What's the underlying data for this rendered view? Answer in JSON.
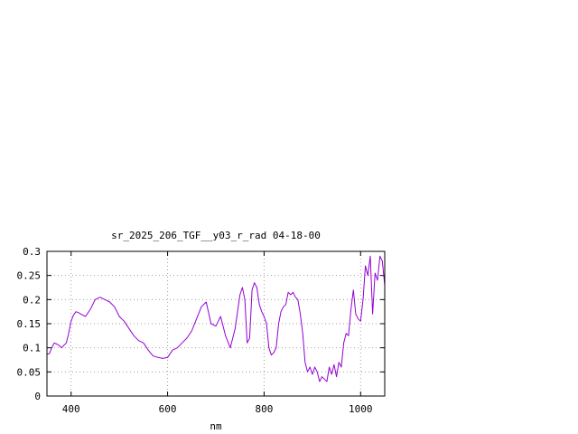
{
  "chart_data": {
    "type": "line",
    "title": "sr_2025_206_TGF__y03_r_rad 04-18-00",
    "xlabel": "nm",
    "ylabel": "",
    "xlim": [
      350,
      1050
    ],
    "ylim": [
      0,
      0.3
    ],
    "x_ticks": [
      400,
      600,
      800,
      1000
    ],
    "y_ticks": [
      0,
      0.05,
      0.1,
      0.15,
      0.2,
      0.25,
      0.3
    ],
    "x_tick_labels": [
      "400",
      "600",
      "800",
      "1000"
    ],
    "y_tick_labels": [
      "0",
      "0.05",
      "0.1",
      "0.15",
      "0.2",
      "0.25",
      "0.3"
    ],
    "grid": true,
    "legend": "none",
    "series": [
      {
        "color": "#9400d3",
        "x": [
          350,
          355,
          360,
          365,
          370,
          375,
          380,
          385,
          390,
          395,
          400,
          405,
          410,
          415,
          420,
          430,
          440,
          450,
          460,
          470,
          480,
          490,
          500,
          510,
          520,
          530,
          540,
          550,
          560,
          570,
          580,
          590,
          600,
          610,
          620,
          630,
          640,
          650,
          660,
          670,
          680,
          690,
          700,
          710,
          720,
          730,
          740,
          745,
          750,
          755,
          760,
          765,
          770,
          775,
          780,
          785,
          790,
          795,
          800,
          805,
          810,
          815,
          820,
          825,
          830,
          835,
          840,
          845,
          850,
          855,
          860,
          865,
          870,
          875,
          880,
          885,
          890,
          895,
          900,
          905,
          910,
          915,
          920,
          925,
          930,
          935,
          940,
          945,
          950,
          955,
          960,
          965,
          970,
          975,
          980,
          985,
          990,
          995,
          1000,
          1005,
          1010,
          1015,
          1020,
          1025,
          1030,
          1035,
          1040,
          1045,
          1050
        ],
        "y": [
          0.087,
          0.088,
          0.1,
          0.11,
          0.108,
          0.105,
          0.1,
          0.105,
          0.11,
          0.13,
          0.155,
          0.168,
          0.175,
          0.173,
          0.17,
          0.165,
          0.18,
          0.2,
          0.205,
          0.2,
          0.195,
          0.185,
          0.165,
          0.155,
          0.14,
          0.125,
          0.115,
          0.11,
          0.095,
          0.083,
          0.08,
          0.078,
          0.08,
          0.095,
          0.1,
          0.11,
          0.12,
          0.135,
          0.16,
          0.185,
          0.195,
          0.15,
          0.145,
          0.165,
          0.125,
          0.1,
          0.14,
          0.175,
          0.21,
          0.225,
          0.2,
          0.11,
          0.12,
          0.22,
          0.235,
          0.225,
          0.19,
          0.175,
          0.165,
          0.15,
          0.1,
          0.085,
          0.09,
          0.1,
          0.15,
          0.175,
          0.185,
          0.19,
          0.215,
          0.21,
          0.215,
          0.205,
          0.2,
          0.17,
          0.13,
          0.07,
          0.05,
          0.06,
          0.045,
          0.06,
          0.05,
          0.03,
          0.04,
          0.035,
          0.03,
          0.06,
          0.045,
          0.065,
          0.04,
          0.07,
          0.06,
          0.11,
          0.13,
          0.125,
          0.18,
          0.22,
          0.17,
          0.16,
          0.155,
          0.2,
          0.27,
          0.25,
          0.29,
          0.17,
          0.255,
          0.24,
          0.29,
          0.28,
          0.23
        ]
      }
    ]
  }
}
